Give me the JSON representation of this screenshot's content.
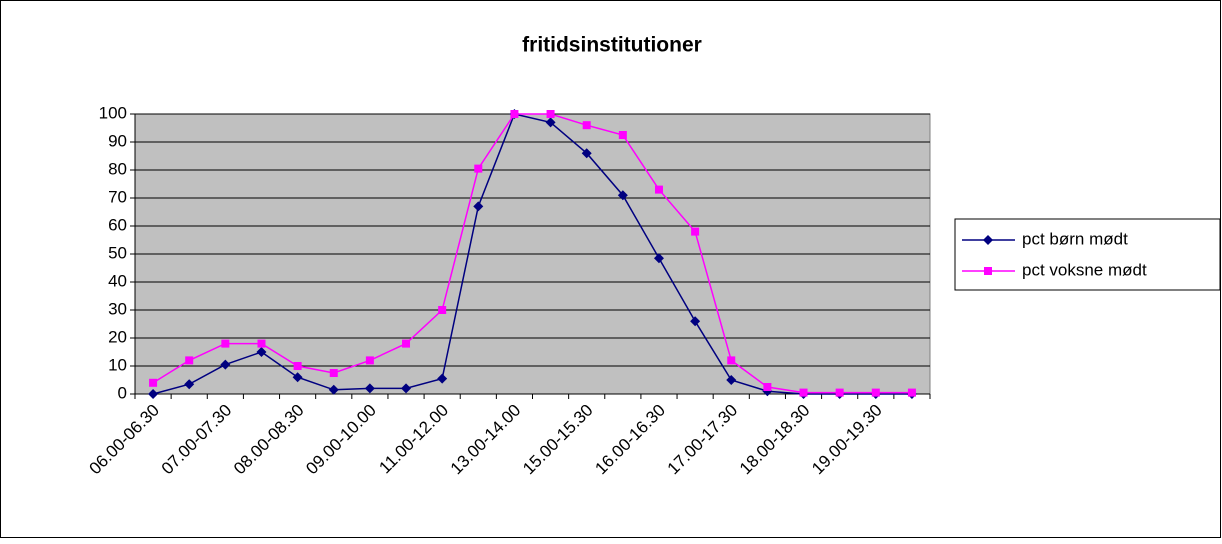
{
  "chart_data": {
    "type": "line",
    "title": "fritidsinstitutioner",
    "categories": [
      "06.00-06.30",
      null,
      "07.00-07.30",
      null,
      "08.00-08.30",
      null,
      "09.00-10.00",
      null,
      "11.00-12.00",
      null,
      "13.00-14.00",
      null,
      "15.00-15.30",
      null,
      "16.00-16.30",
      null,
      "17.00-17.30",
      null,
      "18.00-18.30",
      null,
      "19.00-19.30",
      null
    ],
    "series": [
      {
        "name": "pct børn mødt",
        "color": "#000080",
        "marker": "diamond",
        "values": [
          0,
          3.5,
          10.5,
          15,
          6,
          1.5,
          2,
          2,
          5.5,
          67,
          100,
          97,
          86,
          71,
          48.5,
          26,
          5,
          1,
          0,
          0,
          0,
          0
        ]
      },
      {
        "name": "pct voksne mødt",
        "color": "#ff00ff",
        "marker": "square",
        "values": [
          4,
          12,
          18,
          18,
          10,
          7.5,
          12,
          18,
          30,
          80.5,
          100,
          100,
          96,
          92.5,
          73,
          58,
          12,
          2.5,
          0.5,
          0.5,
          0.5,
          0.5
        ]
      }
    ],
    "ylim": [
      0,
      100
    ],
    "yticks": [
      0,
      10,
      20,
      30,
      40,
      50,
      60,
      70,
      80,
      90,
      100
    ],
    "grid": true,
    "legend": "right"
  }
}
